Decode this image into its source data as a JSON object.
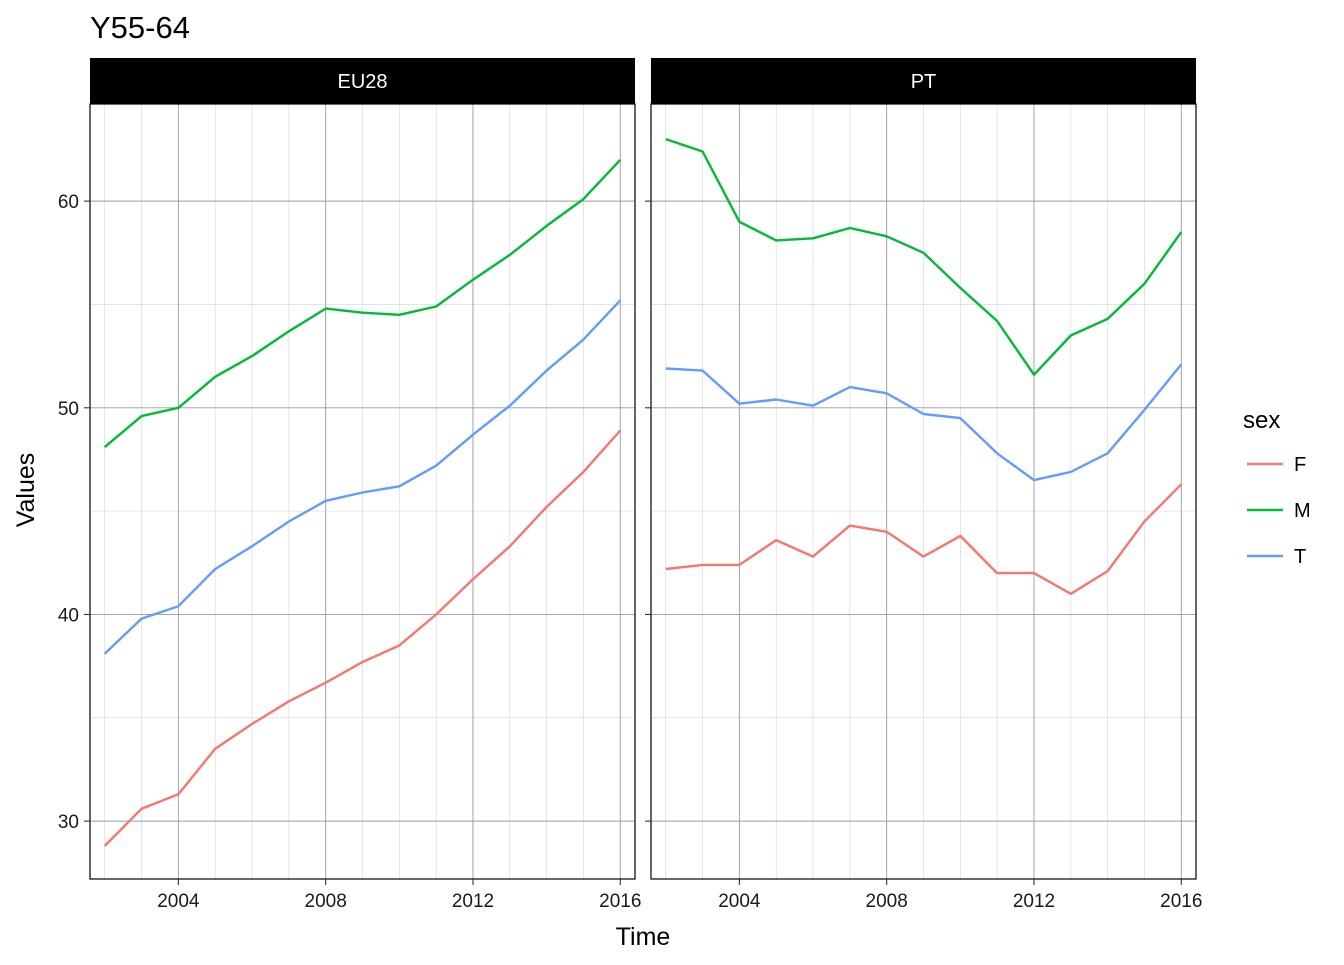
{
  "chart_data": {
    "type": "line",
    "title": "Y55-64",
    "xlabel": "Time",
    "ylabel": "Values",
    "xlim": [
      2001.6,
      2016.4
    ],
    "ylim": [
      27.2,
      64.7
    ],
    "x_ticks": [
      2004,
      2008,
      2012,
      2016
    ],
    "y_ticks": [
      30,
      40,
      50,
      60
    ],
    "grid": true,
    "legend": {
      "title": "sex",
      "placement": "right",
      "entries": [
        {
          "label": "F",
          "color": "#F8766D"
        },
        {
          "label": "M",
          "color": "#00BA38"
        },
        {
          "label": "T",
          "color": "#619CFF"
        }
      ]
    },
    "x": [
      2002,
      2003,
      2004,
      2005,
      2006,
      2007,
      2008,
      2009,
      2010,
      2011,
      2012,
      2013,
      2014,
      2015,
      2016
    ],
    "panels": [
      {
        "name": "EU28",
        "series": [
          {
            "name": "F",
            "color": "#F8766D",
            "values": [
              28.8,
              30.6,
              31.3,
              33.5,
              34.7,
              35.8,
              36.7,
              37.7,
              38.5,
              40.0,
              41.7,
              43.3,
              45.2,
              46.9,
              48.9
            ]
          },
          {
            "name": "M",
            "color": "#00BA38",
            "values": [
              48.1,
              49.6,
              50.0,
              51.5,
              52.5,
              53.7,
              54.8,
              54.6,
              54.5,
              54.9,
              56.2,
              57.4,
              58.8,
              60.1,
              62.0
            ]
          },
          {
            "name": "T",
            "color": "#619CFF",
            "values": [
              38.1,
              39.8,
              40.4,
              42.2,
              43.3,
              44.5,
              45.5,
              45.9,
              46.2,
              47.2,
              48.7,
              50.1,
              51.8,
              53.3,
              55.2
            ]
          }
        ]
      },
      {
        "name": "PT",
        "series": [
          {
            "name": "F",
            "color": "#F8766D",
            "values": [
              42.2,
              42.4,
              42.4,
              43.6,
              42.8,
              44.3,
              44.0,
              42.8,
              43.8,
              42.0,
              42.0,
              41.0,
              42.1,
              44.5,
              46.3
            ]
          },
          {
            "name": "M",
            "color": "#00BA38",
            "values": [
              63.0,
              62.4,
              59.0,
              58.1,
              58.2,
              58.7,
              58.3,
              57.5,
              55.8,
              54.2,
              51.6,
              53.5,
              54.3,
              56.0,
              58.5
            ]
          },
          {
            "name": "T",
            "color": "#619CFF",
            "values": [
              51.9,
              51.8,
              50.2,
              50.4,
              50.1,
              51.0,
              50.7,
              49.7,
              49.5,
              47.8,
              46.5,
              46.9,
              47.8,
              49.9,
              52.1
            ]
          }
        ]
      }
    ]
  }
}
